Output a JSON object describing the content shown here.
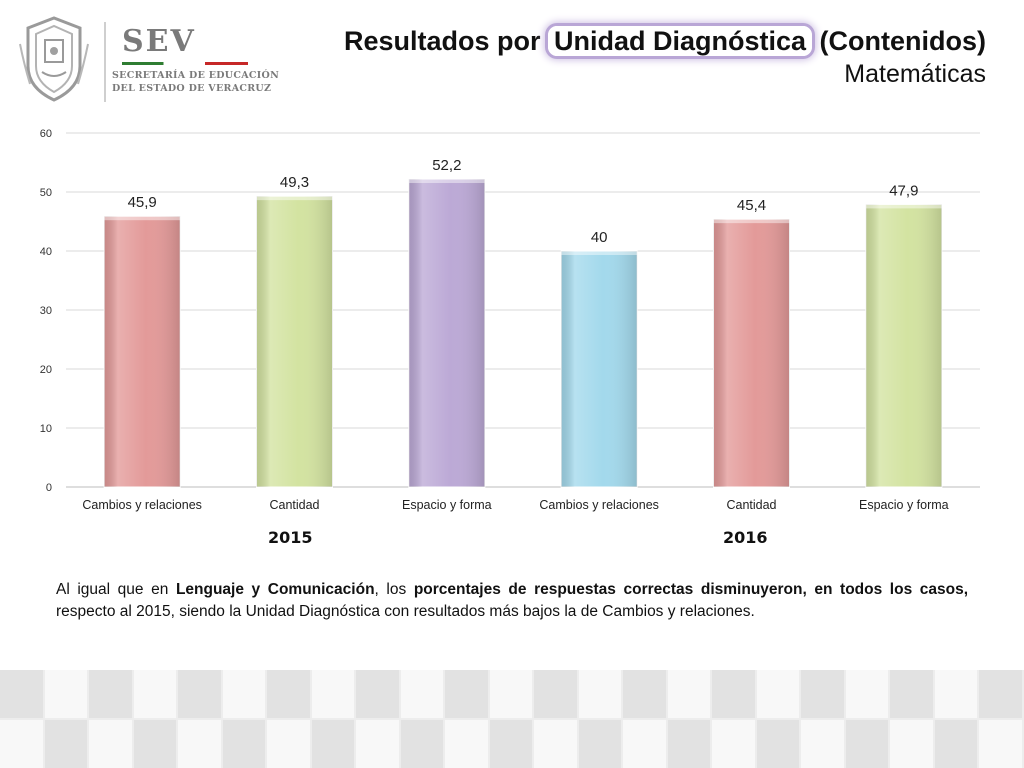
{
  "header": {
    "logo_name": "SEV",
    "logo_subtitle_1": "SECRETARÍA DE EDUCACIÓN",
    "logo_subtitle_2": "DEL ESTADO DE VERACRUZ",
    "title_prefix": "Resultados por ",
    "title_highlight": "Unidad Diagnóstica",
    "title_suffix": " (Contenidos)",
    "subtitle": "Matemáticas"
  },
  "chart_data": {
    "type": "bar",
    "categories": [
      "Cambios y relaciones",
      "Cantidad",
      "Espacio y forma",
      "Cambios y relaciones",
      "Cantidad",
      "Espacio y forma"
    ],
    "values": [
      45.9,
      49.3,
      52.2,
      40,
      45.4,
      47.9
    ],
    "value_labels": [
      "45,9",
      "49,3",
      "52,2",
      "40",
      "45,4",
      "47,9"
    ],
    "groups": [
      {
        "label": "2015",
        "categories": [
          0,
          1,
          2
        ]
      },
      {
        "label": "2016",
        "categories": [
          3,
          4,
          5
        ]
      }
    ],
    "bar_colors": [
      "#e39a99",
      "#d3e3a1",
      "#bca9d6",
      "#a3d9ec",
      "#e39a99",
      "#d3e3a1"
    ],
    "y_ticks": [
      "0",
      "10",
      "20",
      "30",
      "40",
      "50",
      "60"
    ],
    "ylim": [
      0,
      60
    ],
    "grid": true,
    "legend": "none",
    "title": "",
    "xlabel": "",
    "ylabel": ""
  },
  "note": {
    "p1": "Al igual que en ",
    "b1": "Lenguaje y Comunicación",
    "p2": ", los ",
    "b2": "porcentajes de respuestas correctas disminuyeron, en todos los casos,",
    "p3": " respecto al 2015, siendo la Unidad Diagnóstica con resultados más bajos la de Cambios y relaciones."
  }
}
